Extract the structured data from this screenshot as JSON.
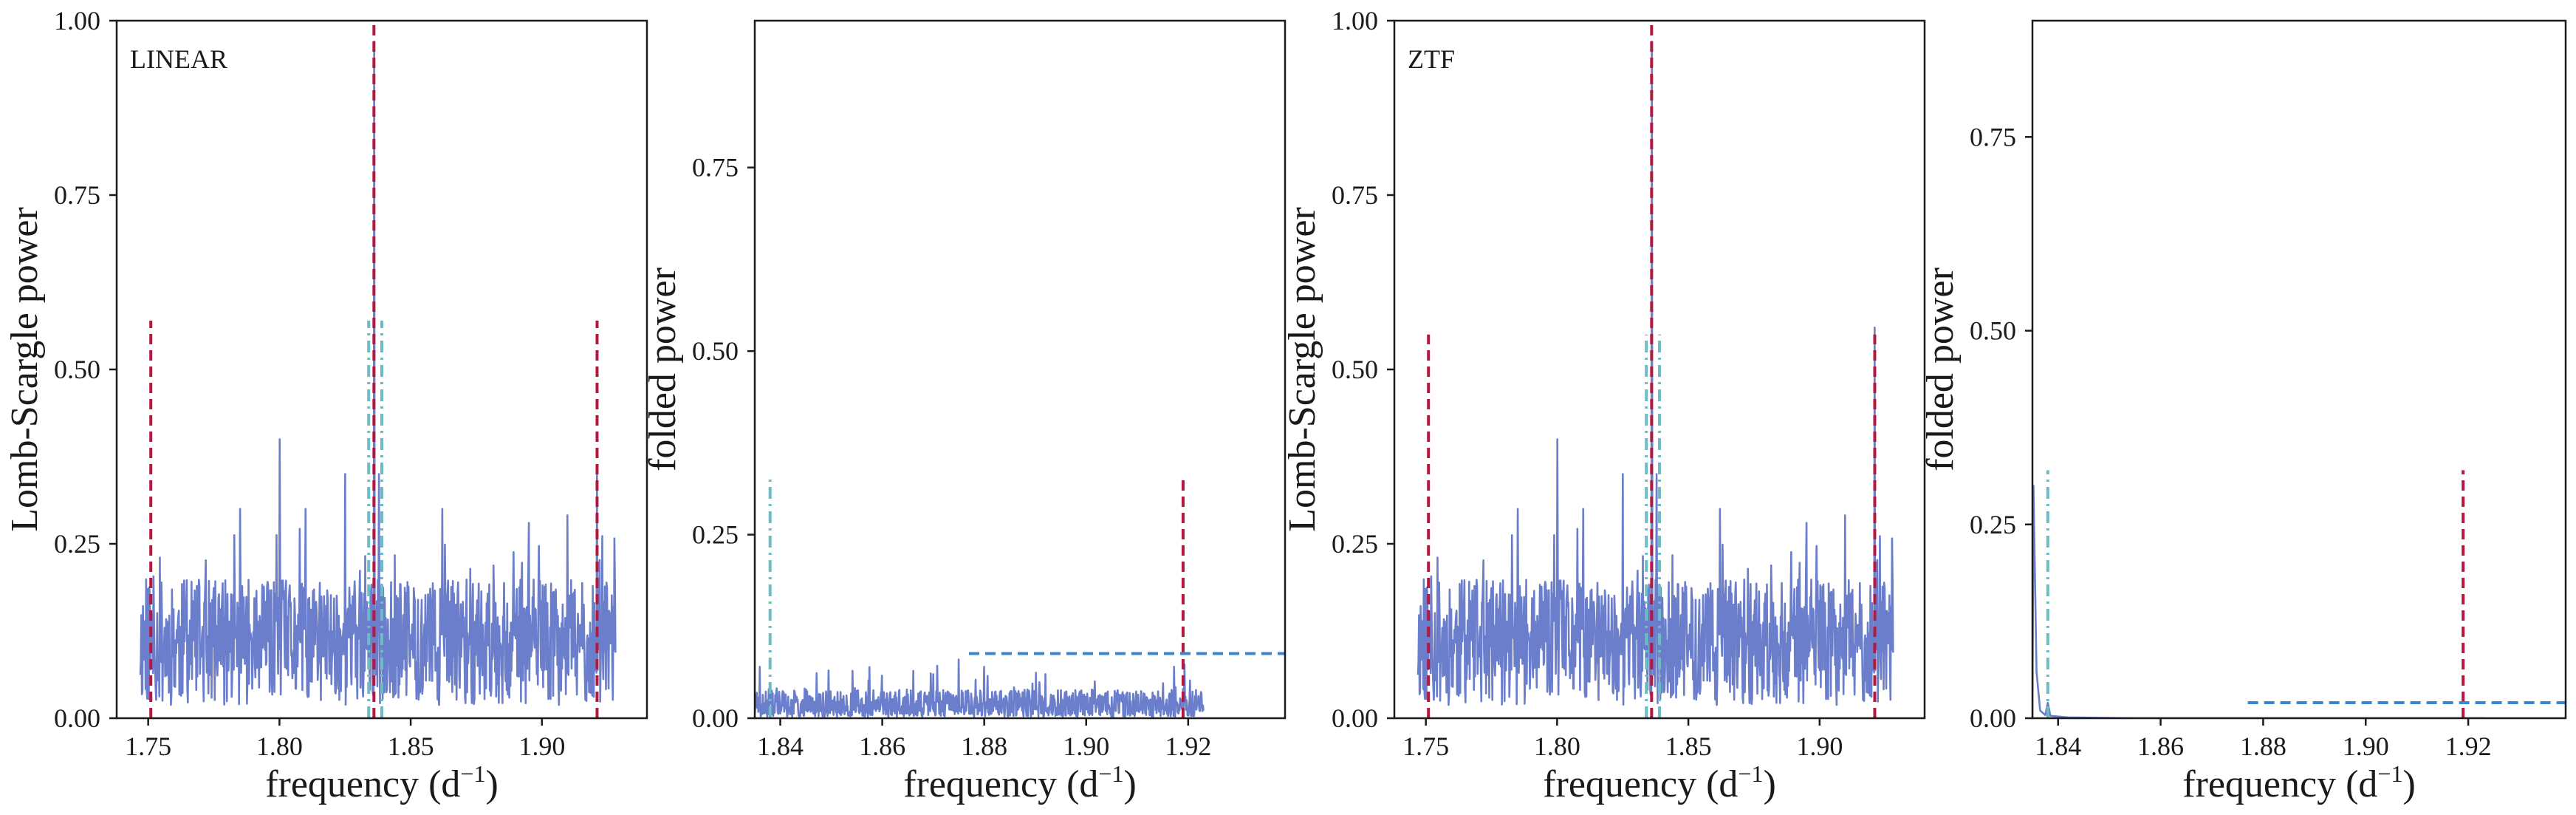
{
  "colors": {
    "signal": "#6a7ecb",
    "dashed_red": "#b5173f",
    "dashdot_teal": "#6cbcc4",
    "dashed_blue": "#3a86cf",
    "frame": "#1a1a1a"
  },
  "chart_data": [
    {
      "type": "line",
      "annotation": "LINEAR",
      "xlabel_main": "frequency (d",
      "xlabel_sup": "−1",
      "xlabel_close": ")",
      "ylabel": "Lomb-Scargle power",
      "xlim": [
        1.738,
        1.94
      ],
      "ylim": [
        0,
        1
      ],
      "xticks": [
        1.75,
        1.8,
        1.85,
        1.9
      ],
      "xtick_labels": [
        "1.75",
        "1.80",
        "1.85",
        "1.90"
      ],
      "yticks": [
        0,
        0.25,
        0.5,
        0.75,
        1.0
      ],
      "ytick_labels": [
        "0.00",
        "0.25",
        "0.50",
        "0.75",
        "1.00"
      ],
      "series": {
        "style": "noise",
        "x_range": [
          1.747,
          1.928
        ],
        "base": 0.1,
        "amplitude": 0.09,
        "seed": 11,
        "peaks": [
          [
            1.836,
            0.97
          ],
          [
            1.8,
            0.4
          ],
          [
            1.825,
            0.35
          ],
          [
            1.921,
            0.35
          ],
          [
            1.785,
            0.3
          ],
          [
            1.838,
            0.35
          ],
          [
            1.862,
            0.3
          ],
          [
            1.895,
            0.28
          ],
          [
            1.81,
            0.3
          ]
        ]
      },
      "vlines": [
        {
          "x": 1.751,
          "ymax": 0.57,
          "style": "dashed-red"
        },
        {
          "x": 1.836,
          "ymax": 1.0,
          "style": "dashed-red"
        },
        {
          "x": 1.921,
          "ymax": 0.57,
          "style": "dashed-red"
        },
        {
          "x": 1.834,
          "ymax": 0.57,
          "style": "dashdot-teal"
        },
        {
          "x": 1.839,
          "ymax": 0.57,
          "style": "dashdot-teal"
        }
      ],
      "hlines": []
    },
    {
      "type": "line",
      "xlabel_main": "frequency (d",
      "xlabel_sup": "−1",
      "xlabel_close": ")",
      "ylabel": "folded power",
      "xlim": [
        1.835,
        1.939
      ],
      "ylim": [
        0,
        0.95
      ],
      "xticks": [
        1.84,
        1.86,
        1.88,
        1.9,
        1.92
      ],
      "xtick_labels": [
        "1.84",
        "1.86",
        "1.88",
        "1.90",
        "1.92"
      ],
      "yticks": [
        0,
        0.25,
        0.5,
        0.75
      ],
      "ytick_labels": [
        "0.00",
        "0.25",
        "0.50",
        "0.75"
      ],
      "series": {
        "style": "noise",
        "x_range": [
          1.835,
          1.923
        ],
        "base": 0.012,
        "amplitude": 0.025,
        "seed": 23,
        "peaks": [
          [
            1.836,
            0.07
          ],
          [
            1.875,
            0.08
          ],
          [
            1.88,
            0.07
          ],
          [
            1.892,
            0.06
          ],
          [
            1.87,
            0.06
          ],
          [
            1.919,
            0.04
          ]
        ]
      },
      "vlines": [
        {
          "x": 1.838,
          "ymax": 0.33,
          "style": "dashdot-teal"
        },
        {
          "x": 1.919,
          "ymax": 0.33,
          "style": "dashed-red"
        }
      ],
      "hlines": [
        {
          "y": 0.088,
          "xmin": 1.877,
          "xmax": 1.939,
          "style": "dashed-blue"
        }
      ]
    },
    {
      "type": "line",
      "annotation": "ZTF",
      "xlabel_main": "frequency (d",
      "xlabel_sup": "−1",
      "xlabel_close": ")",
      "ylabel": "Lomb-Scargle power",
      "xlim": [
        1.738,
        1.94
      ],
      "ylim": [
        0,
        1
      ],
      "xticks": [
        1.75,
        1.8,
        1.85,
        1.9
      ],
      "xtick_labels": [
        "1.75",
        "1.80",
        "1.85",
        "1.90"
      ],
      "yticks": [
        0,
        0.25,
        0.5,
        0.75,
        1.0
      ],
      "ytick_labels": [
        "0.00",
        "0.25",
        "0.50",
        "0.75",
        "1.00"
      ],
      "series": {
        "style": "noise",
        "x_range": [
          1.747,
          1.928
        ],
        "base": 0.1,
        "amplitude": 0.09,
        "seed": 11,
        "peaks": [
          [
            1.836,
            0.97
          ],
          [
            1.8,
            0.4
          ],
          [
            1.825,
            0.35
          ],
          [
            1.921,
            0.56
          ],
          [
            1.785,
            0.3
          ],
          [
            1.838,
            0.35
          ],
          [
            1.862,
            0.3
          ],
          [
            1.895,
            0.28
          ],
          [
            1.81,
            0.3
          ]
        ]
      },
      "vlines": [
        {
          "x": 1.751,
          "ymax": 0.55,
          "style": "dashed-red"
        },
        {
          "x": 1.836,
          "ymax": 1.0,
          "style": "dashed-red"
        },
        {
          "x": 1.921,
          "ymax": 0.55,
          "style": "dashed-red"
        },
        {
          "x": 1.834,
          "ymax": 0.55,
          "style": "dashdot-teal"
        },
        {
          "x": 1.839,
          "ymax": 0.55,
          "style": "dashdot-teal"
        }
      ],
      "hlines": []
    },
    {
      "type": "line",
      "xlabel_main": "frequency (d",
      "xlabel_sup": "−1",
      "xlabel_close": ")",
      "ylabel": "folded power",
      "xlim": [
        1.835,
        1.939
      ],
      "ylim": [
        0,
        0.9
      ],
      "xticks": [
        1.84,
        1.86,
        1.88,
        1.9,
        1.92
      ],
      "xtick_labels": [
        "1.84",
        "1.86",
        "1.88",
        "1.90",
        "1.92"
      ],
      "yticks": [
        0,
        0.25,
        0.5,
        0.75
      ],
      "ytick_labels": [
        "0.00",
        "0.25",
        "0.50",
        "0.75"
      ],
      "series": {
        "style": "spike",
        "points": [
          [
            1.835,
            0.0
          ],
          [
            1.8352,
            0.3
          ],
          [
            1.8358,
            0.06
          ],
          [
            1.8365,
            0.01
          ],
          [
            1.8375,
            0.004
          ],
          [
            1.838,
            0.02
          ],
          [
            1.8385,
            0.003
          ],
          [
            1.842,
            0.001
          ],
          [
            1.855,
            0.0
          ],
          [
            1.923,
            0.0
          ]
        ]
      },
      "vlines": [
        {
          "x": 1.838,
          "ymax": 0.32,
          "style": "dashdot-teal"
        },
        {
          "x": 1.919,
          "ymax": 0.32,
          "style": "dashed-red"
        }
      ],
      "hlines": [
        {
          "y": 0.02,
          "xmin": 1.877,
          "xmax": 1.939,
          "style": "dashed-blue"
        }
      ]
    }
  ]
}
